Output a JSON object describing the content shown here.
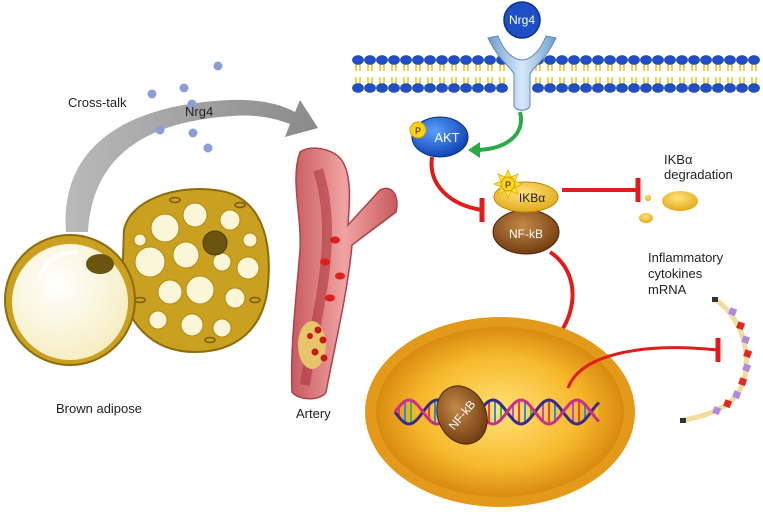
{
  "labels": {
    "cross_talk": "Cross-talk",
    "nrg4_free": "Nrg4",
    "nrg4_receptor": "Nrg4",
    "brown_adipose": "Brown adipose",
    "artery": "Artery",
    "akt": "AKT",
    "phospho_akt": "P",
    "phospho_ikba": "P",
    "ikba": "IKBα",
    "nfkb_cytoplasm": "NF-kB",
    "nfkb_nucleus": "NF-kB",
    "ikba_degradation_line1": "IKBα",
    "ikba_degradation_line2": "degradation",
    "cytokines_line1": "Inflammatory",
    "cytokines_line2": "cytokines",
    "cytokines_line3": "mRNA"
  },
  "colors": {
    "adipose_fill": "#c9a020",
    "adipose_droplet": "#fbf6d8",
    "nucleus_outer": "#e7a21c",
    "nucleus_inner": "#ffc94a",
    "membrane_head": "#1f4fc4",
    "membrane_tail": "#f4d43a",
    "receptor": "#8fb8e0",
    "akt_blue": "#1565d8",
    "ikba_yellow": "#f2c230",
    "nfkb_brown": "#8a4b14",
    "inhibit_red": "#e01c1c",
    "activate_green": "#2aa84a",
    "artery_red": "#d8787a",
    "dot_blue": "#8a9fd8"
  },
  "icons": [
    "phosphate-icon",
    "dna-helix-icon",
    "mrna-strand-icon",
    "inhibition-arrow-icon",
    "activation-arrow-icon"
  ]
}
